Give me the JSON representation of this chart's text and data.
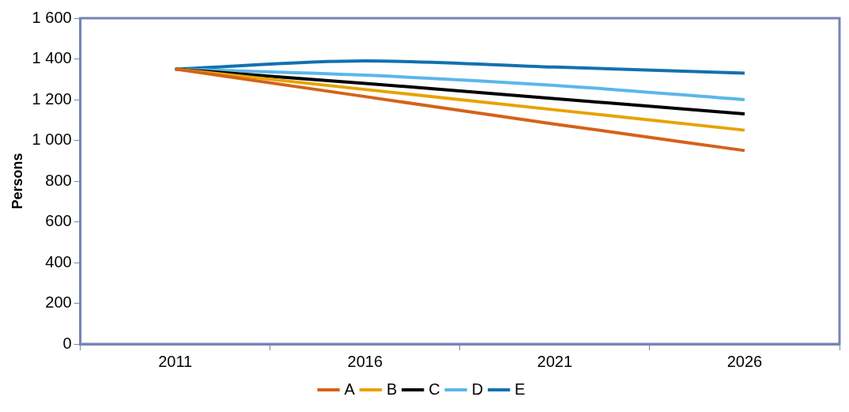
{
  "chart_data": {
    "type": "line",
    "ylabel": "Persons",
    "categories": [
      "2011",
      "2016",
      "2021",
      "2026"
    ],
    "series": [
      {
        "name": "A",
        "color": "#d5621a",
        "values": [
          1350,
          1215,
          1080,
          950
        ]
      },
      {
        "name": "B",
        "color": "#e8a202",
        "values": [
          1350,
          1250,
          1150,
          1050
        ]
      },
      {
        "name": "C",
        "color": "#000000",
        "values": [
          1350,
          1280,
          1205,
          1130
        ]
      },
      {
        "name": "D",
        "color": "#5cb6ea",
        "values": [
          1350,
          1320,
          1270,
          1200
        ]
      },
      {
        "name": "E",
        "color": "#1271b0",
        "values": [
          1350,
          1390,
          1360,
          1330
        ]
      }
    ],
    "ylim": [
      0,
      1600
    ],
    "yticks": [
      0,
      200,
      400,
      600,
      800,
      {
        "value": 1000,
        "label": "1 000"
      },
      {
        "value": 1200,
        "label": "1 200"
      },
      {
        "value": 1400,
        "label": "1 400"
      },
      {
        "value": 1600,
        "label": "1 600"
      }
    ],
    "grid": false,
    "legend": "bottom",
    "marker": "none",
    "line_style": "solid"
  }
}
